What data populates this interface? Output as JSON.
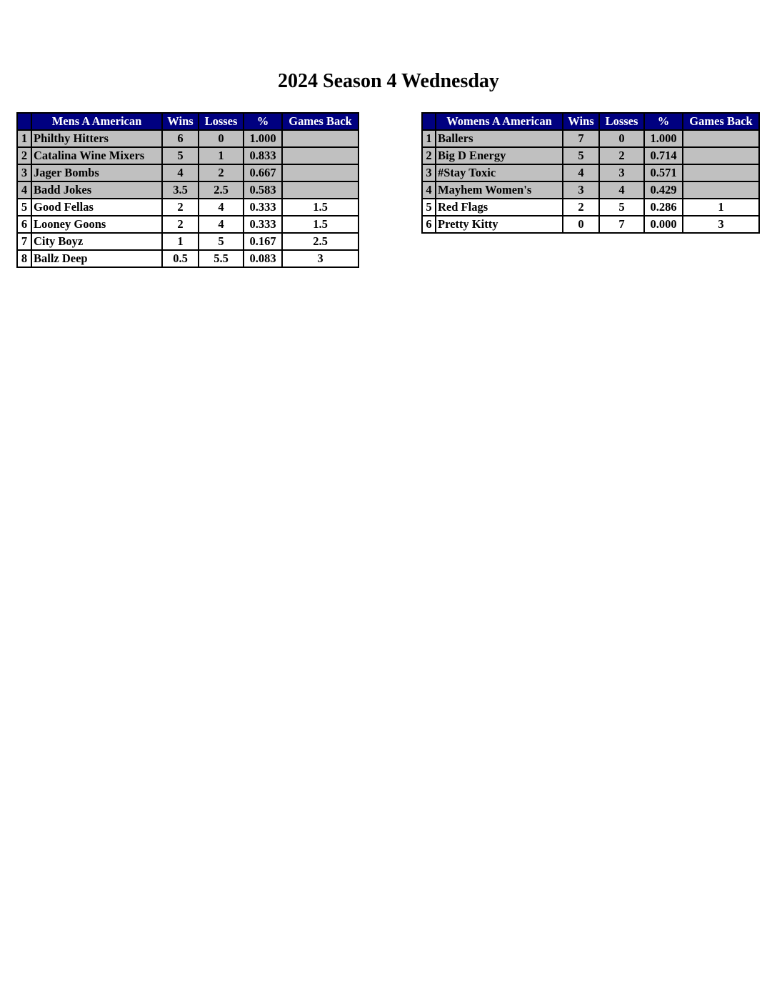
{
  "title": "2024 Season 4 Wednesday",
  "colors": {
    "header_bg": "#000080",
    "header_text": "#ffffff",
    "playoff_row_bg": "#c0c0c0"
  },
  "tables": [
    {
      "id": "mens",
      "headers": [
        "",
        "Mens A American",
        "Wins",
        "Losses",
        "%",
        "Games Back"
      ],
      "rows": [
        {
          "rank": "1",
          "team": "Philthy Hitters",
          "wins": "6",
          "losses": "0",
          "pct": "1.000",
          "gb": "",
          "highlight": true
        },
        {
          "rank": "2",
          "team": "Catalina Wine Mixers",
          "wins": "5",
          "losses": "1",
          "pct": "0.833",
          "gb": "",
          "highlight": true
        },
        {
          "rank": "3",
          "team": "Jager Bombs",
          "wins": "4",
          "losses": "2",
          "pct": "0.667",
          "gb": "",
          "highlight": true
        },
        {
          "rank": "4",
          "team": "Badd Jokes",
          "wins": "3.5",
          "losses": "2.5",
          "pct": "0.583",
          "gb": "",
          "highlight": true
        },
        {
          "rank": "5",
          "team": "Good Fellas",
          "wins": "2",
          "losses": "4",
          "pct": "0.333",
          "gb": "1.5",
          "highlight": false
        },
        {
          "rank": "6",
          "team": "Looney Goons",
          "wins": "2",
          "losses": "4",
          "pct": "0.333",
          "gb": "1.5",
          "highlight": false
        },
        {
          "rank": "7",
          "team": "City Boyz",
          "wins": "1",
          "losses": "5",
          "pct": "0.167",
          "gb": "2.5",
          "highlight": false
        },
        {
          "rank": "8",
          "team": "Ballz Deep",
          "wins": "0.5",
          "losses": "5.5",
          "pct": "0.083",
          "gb": "3",
          "highlight": false
        }
      ]
    },
    {
      "id": "womens",
      "headers": [
        "",
        "Womens A American",
        "Wins",
        "Losses",
        "%",
        "Games Back"
      ],
      "rows": [
        {
          "rank": "1",
          "team": "Ballers",
          "wins": "7",
          "losses": "0",
          "pct": "1.000",
          "gb": "",
          "highlight": true
        },
        {
          "rank": "2",
          "team": "Big D Energy",
          "wins": "5",
          "losses": "2",
          "pct": "0.714",
          "gb": "",
          "highlight": true
        },
        {
          "rank": "3",
          "team": "#Stay Toxic",
          "wins": "4",
          "losses": "3",
          "pct": "0.571",
          "gb": "",
          "highlight": true
        },
        {
          "rank": "4",
          "team": "Mayhem Women's",
          "wins": "3",
          "losses": "4",
          "pct": "0.429",
          "gb": "",
          "highlight": true
        },
        {
          "rank": "5",
          "team": "Red Flags",
          "wins": "2",
          "losses": "5",
          "pct": "0.286",
          "gb": "1",
          "highlight": false
        },
        {
          "rank": "6",
          "team": "Pretty Kitty",
          "wins": "0",
          "losses": "7",
          "pct": "0.000",
          "gb": "3",
          "highlight": false
        }
      ]
    }
  ]
}
